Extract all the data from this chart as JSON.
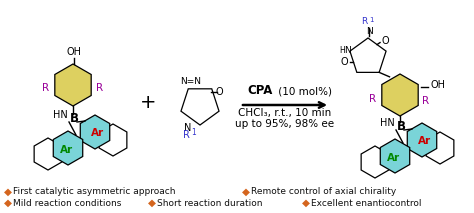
{
  "background_color": "#ffffff",
  "bullet_color": "#d4651e",
  "bullet_points_left": [
    "First catalytic asymmetric approach",
    "Mild reaction conditions"
  ],
  "bullet_points_middle": [
    "Short reaction duration"
  ],
  "bullet_points_right": [
    "Remote control of axial chirality",
    "Excellent enantiocontrol"
  ],
  "bullet_symbol": "◆",
  "text_color": "#111111",
  "figsize": [
    4.74,
    2.13
  ],
  "dpi": 100,
  "reaction_arrow_text2": "CHCl₃, r.t., 10 min",
  "reaction_arrow_text3": "up to 95%, 98% ee",
  "font_size_bullet": 6.5,
  "font_size_reaction": 7.5,
  "cpa_font_size": 8.5,
  "yellow_fill": "#ddd060",
  "cyan_fill": "#7ad4d8",
  "red_text": "#cc0000",
  "purple_text": "#990099",
  "blue_text": "#3333cc",
  "green_text": "#008800"
}
